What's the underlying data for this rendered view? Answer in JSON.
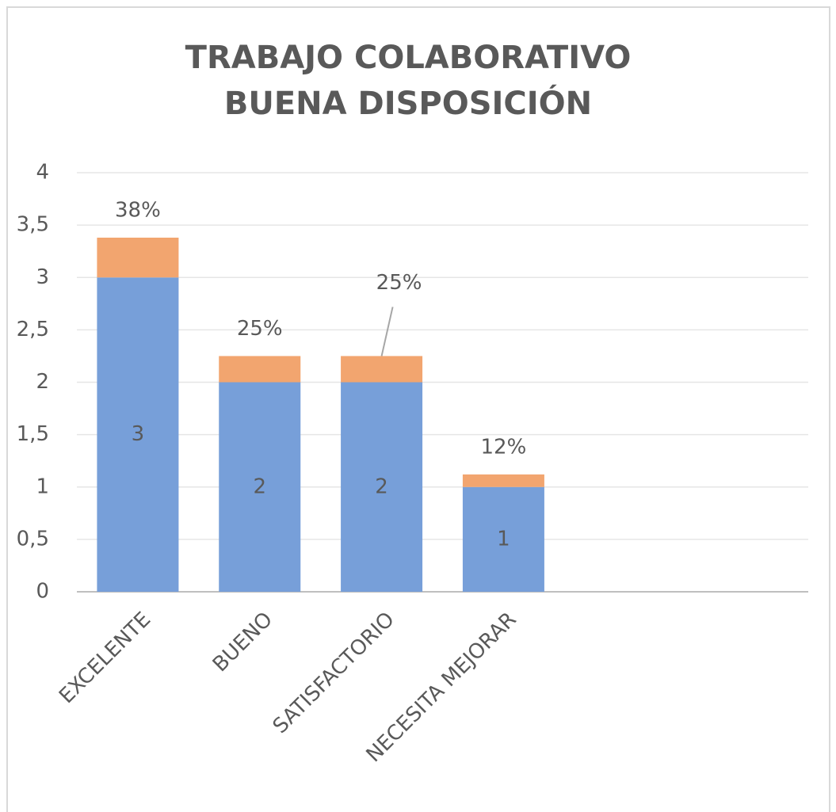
{
  "chart_data": {
    "type": "stacked_bar",
    "title": [
      "TRABAJO COLABORATIVO",
      "BUENA DISPOSICIÓN"
    ],
    "categories": [
      "EXCELENTE",
      "BUENO",
      "SATISFACTORIO",
      "NECESITA MEJORAR",
      null,
      null
    ],
    "series": [
      {
        "color": "#779fd9",
        "values": [
          3,
          2,
          2,
          1,
          null,
          null
        ]
      },
      {
        "color": "#f2a56f",
        "values": [
          0.38,
          0.25,
          0.25,
          0.12,
          null,
          null
        ],
        "value_labels": [
          "38%",
          "25%",
          "25%",
          "12%",
          null,
          null
        ]
      }
    ],
    "ylim": [
      0,
      4
    ],
    "yticks": [
      0,
      {
        "value": 0.5,
        "label": "0,5"
      },
      1,
      {
        "value": 1.5,
        "label": "1,5"
      },
      2,
      {
        "value": 2.5,
        "label": "2,5"
      },
      3,
      {
        "value": 3.5,
        "label": "3,5"
      },
      4
    ],
    "grid": true
  }
}
